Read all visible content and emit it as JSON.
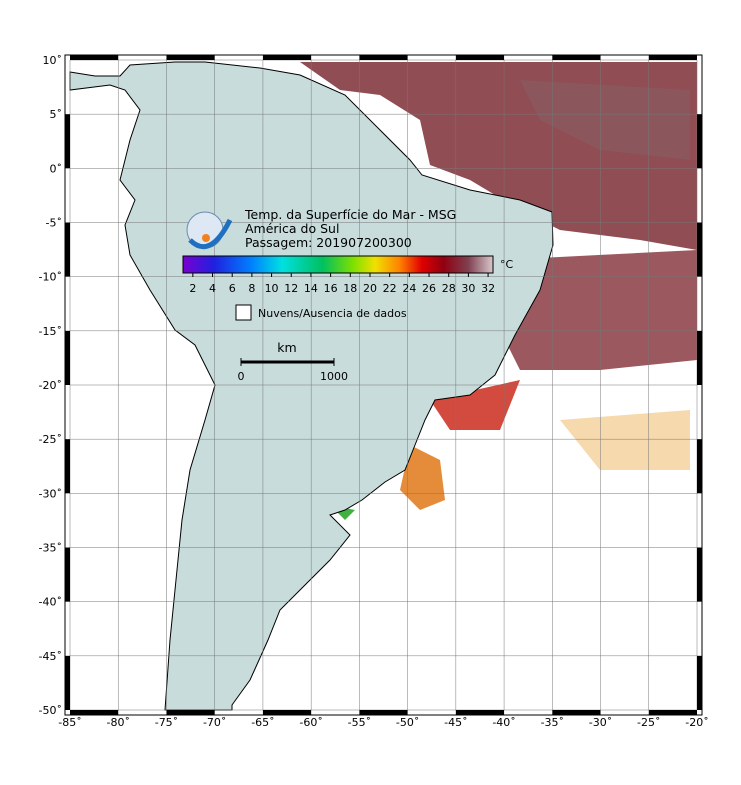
{
  "title": {
    "lines": [
      "Temp. da Superfície do Mar - MSG",
      "América do Sul",
      "Passagem: 201907200300"
    ]
  },
  "colorbar": {
    "range": [
      1,
      32.5
    ],
    "ticks": [
      2,
      4,
      6,
      8,
      10,
      12,
      14,
      16,
      18,
      20,
      22,
      24,
      26,
      28,
      30,
      32
    ],
    "unit": "°C"
  },
  "legend": {
    "label": "Nuvens/Ausencia de dados"
  },
  "scale": {
    "unit": "km",
    "ticks": [
      0,
      1000
    ]
  },
  "axes": {
    "xlim": [
      -85,
      -20
    ],
    "ylim": [
      -50,
      10
    ],
    "xticks": [
      {
        "value": -85,
        "label": "-85˚"
      },
      {
        "value": -80,
        "label": "-80˚"
      },
      {
        "value": -75,
        "label": "-75˚"
      },
      {
        "value": -70,
        "label": "-70˚"
      },
      {
        "value": -65,
        "label": "-65˚"
      },
      {
        "value": -60,
        "label": "-60˚"
      },
      {
        "value": -55,
        "label": "-55˚"
      },
      {
        "value": -50,
        "label": "-50˚"
      },
      {
        "value": -45,
        "label": "-45˚"
      },
      {
        "value": -40,
        "label": "-40˚"
      },
      {
        "value": -35,
        "label": "-35˚"
      },
      {
        "value": -30,
        "label": "-30˚"
      },
      {
        "value": -25,
        "label": "-25˚"
      },
      {
        "value": -20,
        "label": "-20˚"
      }
    ],
    "yticks": [
      {
        "value": 10,
        "label": "10˚"
      },
      {
        "value": 5,
        "label": "5˚"
      },
      {
        "value": 0,
        "label": "0˚"
      },
      {
        "value": -5,
        "label": "-5˚"
      },
      {
        "value": -10,
        "label": "-10˚"
      },
      {
        "value": -15,
        "label": "-15˚"
      },
      {
        "value": -20,
        "label": "-20˚"
      },
      {
        "value": -25,
        "label": "-25˚"
      },
      {
        "value": -30,
        "label": "-30˚"
      },
      {
        "value": -35,
        "label": "-35˚"
      },
      {
        "value": -40,
        "label": "-40˚"
      },
      {
        "value": -45,
        "label": "-45˚"
      },
      {
        "value": -50,
        "label": "-50˚"
      }
    ]
  }
}
